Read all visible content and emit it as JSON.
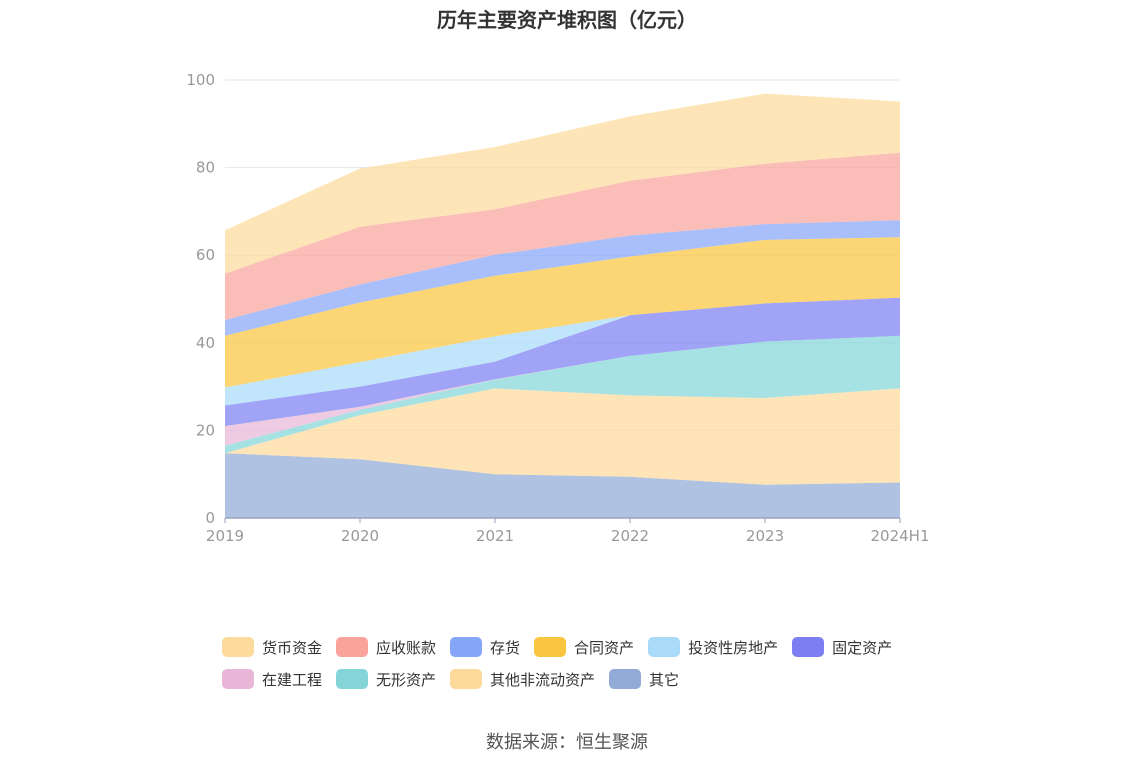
{
  "title": "历年主要资产堆积图（亿元）",
  "source": "数据来源：恒生聚源",
  "chart_data": {
    "type": "area",
    "stacked": true,
    "title": "历年主要资产堆积图（亿元）",
    "categories": [
      "2019",
      "2020",
      "2021",
      "2022",
      "2023",
      "2024H1"
    ],
    "ylim": [
      0,
      100
    ],
    "yticks": [
      0,
      20,
      40,
      60,
      80,
      100
    ],
    "grid": true,
    "legend_position": "bottom",
    "series": [
      {
        "name": "其它",
        "color": "#91aad6",
        "values": [
          14.8,
          13.4,
          10.0,
          9.4,
          7.6,
          8.1
        ]
      },
      {
        "name": "其他非流动资产",
        "color": "#fdd99a",
        "values": [
          0,
          10.1,
          19.6,
          18.6,
          19.8,
          21.5
        ]
      },
      {
        "name": "无形资产",
        "color": "#84d5d8",
        "values": [
          1.7,
          1.2,
          2.0,
          9.0,
          12.9,
          12.0
        ]
      },
      {
        "name": "在建工程",
        "color": "#e8b7d7",
        "values": [
          4.5,
          0.7,
          0.1,
          0,
          0,
          0
        ]
      },
      {
        "name": "固定资产",
        "color": "#7b7ff2",
        "values": [
          4.7,
          4.6,
          4.0,
          9.3,
          8.7,
          8.7
        ]
      },
      {
        "name": "投资性房地产",
        "color": "#a9dbf8",
        "values": [
          4.1,
          5.6,
          5.8,
          0,
          0,
          0
        ]
      },
      {
        "name": "合同资产",
        "color": "#fbc63f",
        "values": [
          11.8,
          13.6,
          13.8,
          13.4,
          14.5,
          13.8
        ]
      },
      {
        "name": "存货",
        "color": "#86a6fa",
        "values": [
          3.6,
          4.1,
          4.8,
          4.8,
          3.6,
          3.9
        ]
      },
      {
        "name": "应收账款",
        "color": "#f9a39b",
        "values": [
          10.6,
          13.2,
          10.4,
          12.5,
          13.8,
          15.4
        ]
      },
      {
        "name": "货币资金",
        "color": "#fddb9c",
        "values": [
          9.9,
          13.3,
          14.2,
          14.7,
          16.0,
          11.7
        ]
      }
    ]
  },
  "legend": [
    [
      {
        "label": "货币资金",
        "color": "#fddb9c"
      },
      {
        "label": "应收账款",
        "color": "#f9a39b"
      },
      {
        "label": "存货",
        "color": "#86a6fa"
      },
      {
        "label": "合同资产",
        "color": "#fbc63f"
      },
      {
        "label": "投资性房地产",
        "color": "#a9dbf8"
      },
      {
        "label": "固定资产",
        "color": "#7b7ff2"
      }
    ],
    [
      {
        "label": "在建工程",
        "color": "#e8b7d7"
      },
      {
        "label": "无形资产",
        "color": "#84d5d8"
      },
      {
        "label": "其他非流动资产",
        "color": "#fdd99a"
      },
      {
        "label": "其它",
        "color": "#91aad6"
      }
    ]
  ]
}
